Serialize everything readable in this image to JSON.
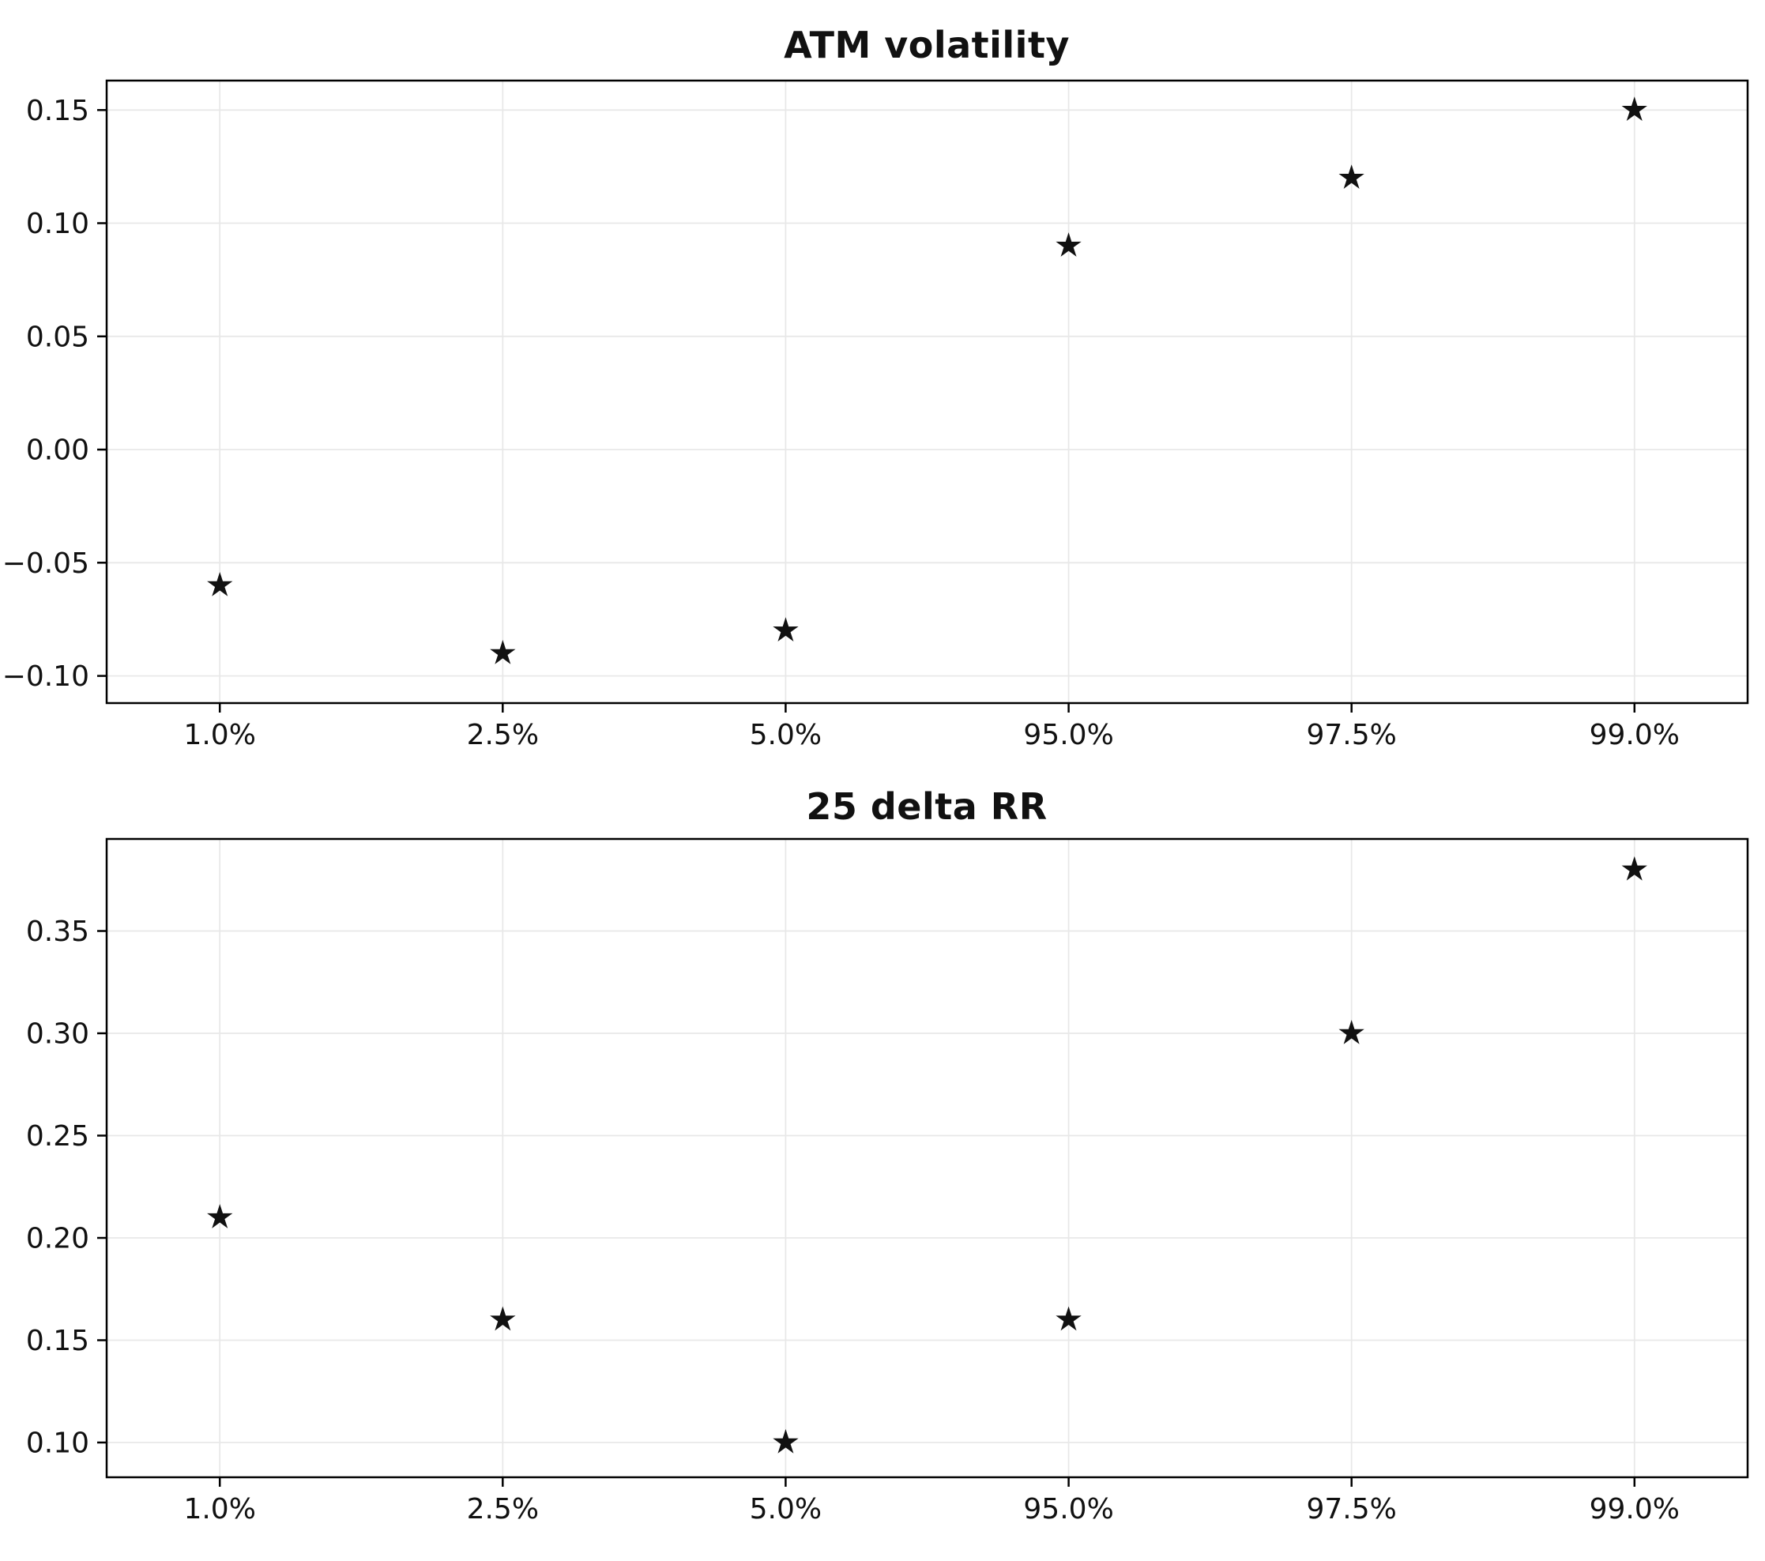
{
  "page": {
    "background": "#ffffff"
  },
  "chart_data": [
    {
      "type": "scatter",
      "title": "ATM volatility",
      "marker": "star",
      "categories": [
        "1.0%",
        "2.5%",
        "5.0%",
        "95.0%",
        "97.5%",
        "99.0%"
      ],
      "values": [
        -0.06,
        -0.09,
        -0.08,
        0.09,
        0.12,
        0.15
      ],
      "yticks": [
        -0.1,
        -0.05,
        0.0,
        0.05,
        0.1,
        0.15
      ],
      "ytick_labels": [
        "−0.10",
        "−0.05",
        "0.00",
        "0.05",
        "0.10",
        "0.15"
      ],
      "ylim": [
        -0.112,
        0.163
      ],
      "xlabel": "",
      "ylabel": "",
      "grid": true,
      "legend": "none",
      "colors": {
        "marker": "#111111",
        "grid": "#e8e8e8",
        "axis": "#000000",
        "text": "#111111"
      }
    },
    {
      "type": "scatter",
      "title": "25 delta RR",
      "marker": "star",
      "categories": [
        "1.0%",
        "2.5%",
        "5.0%",
        "95.0%",
        "97.5%",
        "99.0%"
      ],
      "values": [
        0.21,
        0.16,
        0.1,
        0.16,
        0.3,
        0.38
      ],
      "yticks": [
        0.1,
        0.15,
        0.2,
        0.25,
        0.3,
        0.35
      ],
      "ytick_labels": [
        "0.10",
        "0.15",
        "0.20",
        "0.25",
        "0.30",
        "0.35"
      ],
      "ylim": [
        0.083,
        0.395
      ],
      "xlabel": "",
      "ylabel": "",
      "grid": true,
      "legend": "none",
      "colors": {
        "marker": "#111111",
        "grid": "#e8e8e8",
        "axis": "#000000",
        "text": "#111111"
      }
    }
  ]
}
